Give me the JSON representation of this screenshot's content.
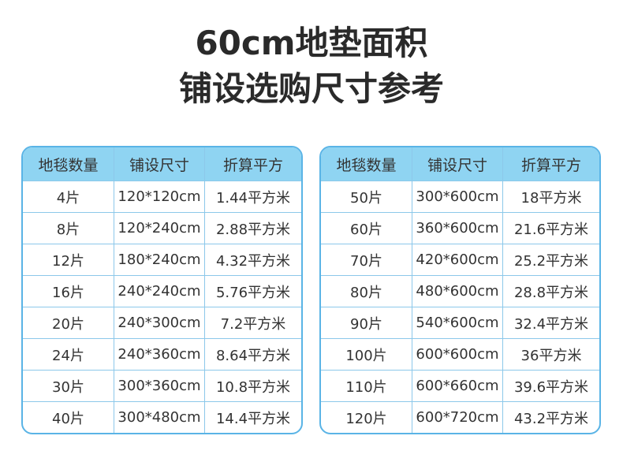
{
  "title": [
    "60cm地垫面积",
    "铺设选购尺寸参考"
  ],
  "tables": [
    {
      "header": [
        "地毯数量",
        "铺设尺寸",
        "折算平方"
      ],
      "rows": [
        [
          "4片",
          "120*120cm",
          "1.44平方米"
        ],
        [
          "8片",
          "120*240cm",
          "2.88平方米"
        ],
        [
          "12片",
          "180*240cm",
          "4.32平方米"
        ],
        [
          "16片",
          "240*240cm",
          "5.76平方米"
        ],
        [
          "20片",
          "240*300cm",
          "7.2平方米"
        ],
        [
          "24片",
          "240*360cm",
          "8.64平方米"
        ],
        [
          "30片",
          "300*360cm",
          "10.8平方米"
        ],
        [
          "40片",
          "300*480cm",
          "14.4平方米"
        ]
      ]
    },
    {
      "header": [
        "地毯数量",
        "铺设尺寸",
        "折算平方"
      ],
      "rows": [
        [
          "50片",
          "300*600cm",
          "18平方米"
        ],
        [
          "60片",
          "360*600cm",
          "21.6平方米"
        ],
        [
          "70片",
          "420*600cm",
          "25.2平方米"
        ],
        [
          "80片",
          "480*600cm",
          "28.8平方米"
        ],
        [
          "90片",
          "540*600cm",
          "32.4平方米"
        ],
        [
          "100片",
          "600*600cm",
          "36平方米"
        ],
        [
          "110片",
          "600*660cm",
          "39.6平方米"
        ],
        [
          "120片",
          "600*720cm",
          "43.2平方米"
        ]
      ]
    }
  ]
}
